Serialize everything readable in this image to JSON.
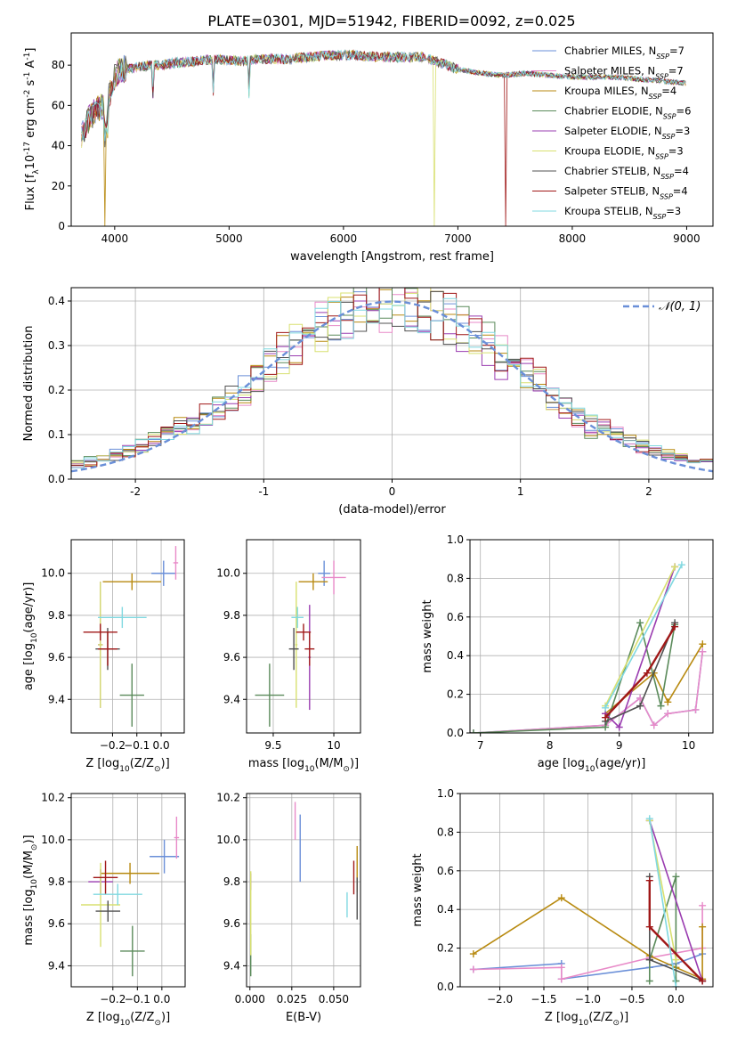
{
  "figure_title": "PLATE=0301, MJD=51942, FIBERID=0092, z=0.025",
  "models": [
    {
      "base": "Chabrier MILES, N",
      "sub": "SSP",
      "tail": "=7",
      "color": "#6a8fd8"
    },
    {
      "base": "Salpeter MILES, N",
      "sub": "SSP",
      "tail": "=7",
      "color": "#e88ac8"
    },
    {
      "base": "Kroupa MILES, N",
      "sub": "SSP",
      "tail": "=4",
      "color": "#b88a10"
    },
    {
      "base": "Chabrier ELODIE, N",
      "sub": "SSP",
      "tail": "=6",
      "color": "#5a8a5a"
    },
    {
      "base": "Salpeter ELODIE, N",
      "sub": "SSP",
      "tail": "=3",
      "color": "#9a3cb0"
    },
    {
      "base": "Kroupa ELODIE, N",
      "sub": "SSP",
      "tail": "=3",
      "color": "#d8e070"
    },
    {
      "base": "Chabrier STELIB, N",
      "sub": "SSP",
      "tail": "=4",
      "color": "#505050"
    },
    {
      "base": "Salpeter STELIB, N",
      "sub": "SSP",
      "tail": "=4",
      "color": "#a01818"
    },
    {
      "base": "Kroupa STELIB, N",
      "sub": "SSP",
      "tail": "=3",
      "color": "#80d8e0"
    }
  ],
  "chart_data": [
    {
      "id": "spectrum",
      "type": "line",
      "xlabel": "wavelength [Angstrom, rest frame]",
      "ylabel": {
        "pre": "Flux [f",
        "sub": "λ",
        "mid": "10",
        "sup1": "-17",
        "post": " erg cm",
        "sup2": "-2",
        "post2": " s",
        "sup3": "-1",
        "post3": " A",
        "sup4": "-1",
        "end": "]"
      },
      "xlim": [
        3620,
        9230
      ],
      "ylim": [
        0,
        96
      ],
      "xticks": [
        4000,
        5000,
        6000,
        7000,
        8000,
        9000
      ],
      "yticks": [
        0,
        20,
        40,
        60,
        80
      ],
      "grid": false,
      "legend": "upper-right",
      "continuum": {
        "x": [
          3710,
          3760,
          3800,
          3850,
          3900,
          3950,
          4000,
          4050,
          4100,
          4200,
          4300,
          4400,
          4500,
          4700,
          4900,
          5100,
          5300,
          5500,
          5700,
          5900,
          6100,
          6300,
          6500,
          6700,
          6800,
          7000,
          7200,
          7400,
          7600,
          7800,
          8000,
          8200,
          8400,
          8600,
          8800,
          9000
        ],
        "y": [
          45,
          52,
          55,
          58,
          60,
          65,
          74,
          78,
          78,
          79,
          80,
          80,
          81,
          82,
          83,
          82,
          83,
          83,
          84,
          85,
          85,
          84,
          84,
          84,
          82,
          78,
          76,
          75,
          76,
          75,
          74,
          74,
          74,
          73,
          72,
          71
        ]
      },
      "dropouts": [
        {
          "model": 2,
          "x": 3910
        },
        {
          "model": 5,
          "x": 6790
        },
        {
          "model": 7,
          "x": 7420
        }
      ]
    },
    {
      "id": "residuals",
      "type": "histogram",
      "xlabel": "(data-model)/error",
      "ylabel": "Normed distribution",
      "xlim": [
        -2.5,
        2.5
      ],
      "ylim": [
        0,
        0.43
      ],
      "xticks": [
        -2,
        -1,
        0,
        1,
        2
      ],
      "yticks": [
        0.0,
        0.1,
        0.2,
        0.3,
        0.4
      ],
      "grid": true,
      "legend": "upper-right",
      "reference_label": "𝒩(0, 1)",
      "reference_color": "#6a8fd8",
      "bin_width": 0.1
    },
    {
      "id": "z-age",
      "type": "scatter",
      "xlabel": {
        "pre": "Z [log",
        "sub": "10",
        "post": "(Z/Z",
        "sub2": "⊙",
        "end": ")]"
      },
      "ylabel": {
        "pre": "age  [log",
        "sub": "10",
        "post": "(age/yr)]"
      },
      "xlim": [
        -0.37,
        0.095
      ],
      "ylim": [
        9.24,
        10.16
      ],
      "xticks": [
        -0.2,
        -0.1,
        0.0
      ],
      "xticklabels": [
        "−0.2",
        "−0.1",
        "0.0"
      ],
      "yticks": [
        9.4,
        9.6,
        9.8,
        10.0
      ],
      "grid": true,
      "points": [
        {
          "model": 0,
          "x": 0.01,
          "xerr": [
            0.05,
            0.05
          ],
          "y": 10.0,
          "yerr": [
            0.06,
            0.06
          ]
        },
        {
          "model": 1,
          "x": 0.06,
          "xerr": [
            0.01,
            0.01
          ],
          "y": 10.05,
          "yerr": [
            0.08,
            0.08
          ]
        },
        {
          "model": 2,
          "x": -0.12,
          "xerr": [
            0.12,
            0.12
          ],
          "y": 9.96,
          "yerr": [
            0.04,
            0.04
          ]
        },
        {
          "model": 3,
          "x": -0.12,
          "xerr": [
            0.05,
            0.05
          ],
          "y": 9.42,
          "yerr": [
            0.15,
            0.15
          ]
        },
        {
          "model": 4,
          "x": -0.25,
          "xerr": [
            0.01,
            0.01
          ],
          "y": 9.66,
          "yerr": [
            0.3,
            0.3
          ]
        },
        {
          "model": 5,
          "x": -0.25,
          "xerr": [
            0.01,
            0.01
          ],
          "y": 9.66,
          "yerr": [
            0.3,
            0.3
          ]
        },
        {
          "model": 6,
          "x": -0.22,
          "xerr": [
            0.05,
            0.05
          ],
          "y": 9.64,
          "yerr": [
            0.1,
            0.1
          ]
        },
        {
          "model": 7,
          "x": -0.22,
          "xerr": [
            0.04,
            0.04
          ],
          "y": 9.64,
          "yerr": [
            0.08,
            0.08
          ]
        },
        {
          "model": 7,
          "x": -0.25,
          "xerr": [
            0.07,
            0.07
          ],
          "y": 9.72,
          "yerr": [
            0.04,
            0.04
          ]
        },
        {
          "model": 8,
          "x": -0.16,
          "xerr": [
            0.1,
            0.1
          ],
          "y": 9.79,
          "yerr": [
            0.05,
            0.05
          ]
        }
      ]
    },
    {
      "id": "mass-age",
      "type": "scatter",
      "xlabel": {
        "pre": "mass [log",
        "sub": "10",
        "post": "(M/M",
        "sub2": "⊙",
        "end": ")]"
      },
      "ylabel": "",
      "xlim": [
        9.28,
        10.22
      ],
      "ylim": [
        9.24,
        10.16
      ],
      "xticks": [
        9.5,
        10.0
      ],
      "yticks": [
        9.4,
        9.6,
        9.8,
        10.0
      ],
      "grid": true,
      "points": [
        {
          "model": 0,
          "x": 9.92,
          "xerr": [
            0.05,
            0.05
          ],
          "y": 10.0,
          "yerr": [
            0.06,
            0.06
          ]
        },
        {
          "model": 1,
          "x": 10.0,
          "xerr": [
            0.1,
            0.1
          ],
          "y": 9.98,
          "yerr": [
            0.08,
            0.08
          ]
        },
        {
          "model": 2,
          "x": 9.83,
          "xerr": [
            0.12,
            0.12
          ],
          "y": 9.96,
          "yerr": [
            0.04,
            0.04
          ]
        },
        {
          "model": 3,
          "x": 9.47,
          "xerr": [
            0.12,
            0.12
          ],
          "y": 9.42,
          "yerr": [
            0.15,
            0.15
          ]
        },
        {
          "model": 4,
          "x": 9.8,
          "xerr": [
            0.01,
            0.01
          ],
          "y": 9.6,
          "yerr": [
            0.25,
            0.25
          ]
        },
        {
          "model": 5,
          "x": 9.69,
          "xerr": [
            0.01,
            0.01
          ],
          "y": 9.66,
          "yerr": [
            0.3,
            0.3
          ]
        },
        {
          "model": 6,
          "x": 9.67,
          "xerr": [
            0.04,
            0.04
          ],
          "y": 9.64,
          "yerr": [
            0.1,
            0.1
          ]
        },
        {
          "model": 7,
          "x": 9.8,
          "xerr": [
            0.04,
            0.04
          ],
          "y": 9.64,
          "yerr": [
            0.08,
            0.08
          ]
        },
        {
          "model": 7,
          "x": 9.75,
          "xerr": [
            0.06,
            0.06
          ],
          "y": 9.72,
          "yerr": [
            0.04,
            0.04
          ]
        },
        {
          "model": 8,
          "x": 9.7,
          "xerr": [
            0.05,
            0.05
          ],
          "y": 9.79,
          "yerr": [
            0.05,
            0.05
          ]
        }
      ]
    },
    {
      "id": "age-weight",
      "type": "line",
      "xlabel": {
        "pre": "age  [log",
        "sub": "10",
        "post": "(age/yr)]"
      },
      "ylabel": "mass weight",
      "xlim": [
        6.85,
        10.35
      ],
      "ylim": [
        0,
        1.0
      ],
      "xticks": [
        7,
        8,
        9,
        10
      ],
      "yticks": [
        0.0,
        0.2,
        0.4,
        0.6,
        0.8,
        1.0
      ],
      "grid": true,
      "series": [
        {
          "model": 0,
          "x": [
            6.9,
            8.8,
            9.3,
            9.5,
            9.7,
            10.1,
            10.2
          ],
          "y": [
            0.0,
            0.04,
            0.18,
            0.04,
            0.1,
            0.12,
            0.42
          ]
        },
        {
          "model": 1,
          "x": [
            6.9,
            8.8,
            9.3,
            9.5,
            9.7,
            10.1,
            10.2
          ],
          "y": [
            0.0,
            0.04,
            0.18,
            0.04,
            0.1,
            0.12,
            0.42
          ]
        },
        {
          "model": 2,
          "x": [
            8.8,
            9.5,
            9.7,
            10.2
          ],
          "y": [
            0.1,
            0.31,
            0.16,
            0.46
          ]
        },
        {
          "model": 3,
          "x": [
            6.9,
            8.8,
            9.3,
            9.6,
            9.8
          ],
          "y": [
            0.0,
            0.03,
            0.57,
            0.14,
            0.56
          ]
        },
        {
          "model": 4,
          "x": [
            8.8,
            9.0,
            9.8
          ],
          "y": [
            0.1,
            0.03,
            0.86
          ]
        },
        {
          "model": 5,
          "x": [
            8.8,
            9.8
          ],
          "y": [
            0.14,
            0.86
          ]
        },
        {
          "model": 6,
          "x": [
            8.8,
            9.3,
            9.8
          ],
          "y": [
            0.06,
            0.14,
            0.57
          ]
        },
        {
          "model": 7,
          "x": [
            8.8,
            9.4,
            9.8
          ],
          "y": [
            0.08,
            0.31,
            0.55
          ]
        },
        {
          "model": 8,
          "x": [
            8.8,
            9.9
          ],
          "y": [
            0.13,
            0.87
          ]
        }
      ]
    },
    {
      "id": "z-mass",
      "type": "scatter",
      "xlabel": {
        "pre": "Z [log",
        "sub": "10",
        "post": "(Z/Z",
        "sub2": "⊙",
        "end": ")]"
      },
      "ylabel": {
        "pre": "mass [log",
        "sub": "10",
        "post": "(M/M",
        "sub2": "⊙",
        "end": ")]"
      },
      "xlim": [
        -0.37,
        0.095
      ],
      "ylim": [
        9.3,
        10.22
      ],
      "xticks": [
        -0.2,
        -0.1,
        0.0
      ],
      "xticklabels": [
        "−0.2",
        "−0.1",
        "0.0"
      ],
      "yticks": [
        9.4,
        9.6,
        9.8,
        10.0,
        10.2
      ],
      "grid": true,
      "points": [
        {
          "model": 0,
          "x": 0.01,
          "xerr": [
            0.06,
            0.06
          ],
          "y": 9.92,
          "yerr": [
            0.08,
            0.08
          ]
        },
        {
          "model": 1,
          "x": 0.06,
          "xerr": [
            0.01,
            0.01
          ],
          "y": 10.01,
          "yerr": [
            0.1,
            0.1
          ]
        },
        {
          "model": 2,
          "x": -0.13,
          "xerr": [
            0.12,
            0.12
          ],
          "y": 9.84,
          "yerr": [
            0.05,
            0.05
          ]
        },
        {
          "model": 3,
          "x": -0.12,
          "xerr": [
            0.05,
            0.05
          ],
          "y": 9.47,
          "yerr": [
            0.12,
            0.12
          ]
        },
        {
          "model": 4,
          "x": -0.25,
          "xerr": [
            0.05,
            0.05
          ],
          "y": 9.8,
          "yerr": [
            0.06,
            0.06
          ]
        },
        {
          "model": 5,
          "x": -0.25,
          "xerr": [
            0.08,
            0.08
          ],
          "y": 9.69,
          "yerr": [
            0.2,
            0.2
          ]
        },
        {
          "model": 6,
          "x": -0.22,
          "xerr": [
            0.05,
            0.05
          ],
          "y": 9.66,
          "yerr": [
            0.05,
            0.05
          ]
        },
        {
          "model": 7,
          "x": -0.23,
          "xerr": [
            0.05,
            0.05
          ],
          "y": 9.82,
          "yerr": [
            0.08,
            0.08
          ]
        },
        {
          "model": 8,
          "x": -0.18,
          "xerr": [
            0.1,
            0.1
          ],
          "y": 9.74,
          "yerr": [
            0.05,
            0.05
          ]
        }
      ]
    },
    {
      "id": "ebv-mass",
      "type": "scatter",
      "xlabel": "E(B-V)",
      "ylabel": "",
      "xlim": [
        -0.002,
        0.066
      ],
      "ylim": [
        9.3,
        10.22
      ],
      "xticks": [
        0.0,
        0.025,
        0.05
      ],
      "xticklabels": [
        "0.000",
        "0.025",
        "0.050"
      ],
      "yticks": [
        9.4,
        9.6,
        9.8,
        10.0,
        10.2
      ],
      "grid": true,
      "points": [
        {
          "model": 0,
          "x": 0.03,
          "xerr": [
            0,
            0
          ],
          "y": 9.96,
          "yerr": [
            0.16,
            0.16
          ]
        },
        {
          "model": 1,
          "x": 0.027,
          "xerr": [
            0,
            0
          ],
          "y": 10.09,
          "yerr": [
            0.09,
            0.09
          ]
        },
        {
          "model": 2,
          "x": 0.064,
          "xerr": [
            0,
            0
          ],
          "y": 9.86,
          "yerr": [
            0.11,
            0.11
          ]
        },
        {
          "model": 3,
          "x": 0.0005,
          "xerr": [
            0,
            0
          ],
          "y": 9.45,
          "yerr": [
            0.1,
            0.1
          ]
        },
        {
          "model": 4,
          "x": 0.0005,
          "xerr": [
            0,
            0
          ],
          "y": 9.8,
          "yerr": [
            0.04,
            0.04
          ]
        },
        {
          "model": 5,
          "x": 0.0005,
          "xerr": [
            0,
            0
          ],
          "y": 9.65,
          "yerr": [
            0.2,
            0.2
          ]
        },
        {
          "model": 6,
          "x": 0.064,
          "xerr": [
            0,
            0
          ],
          "y": 9.72,
          "yerr": [
            0.1,
            0.1
          ]
        },
        {
          "model": 7,
          "x": 0.062,
          "xerr": [
            0,
            0
          ],
          "y": 9.82,
          "yerr": [
            0.08,
            0.08
          ]
        },
        {
          "model": 8,
          "x": 0.058,
          "xerr": [
            0,
            0
          ],
          "y": 9.69,
          "yerr": [
            0.06,
            0.06
          ]
        }
      ]
    },
    {
      "id": "z-weight",
      "type": "line",
      "xlabel": {
        "pre": "Z [log",
        "sub": "10",
        "post": "(Z/Z",
        "sub2": "⊙",
        "end": ")]"
      },
      "ylabel": "mass weight",
      "xlim": [
        -2.45,
        0.42
      ],
      "ylim": [
        0,
        1.0
      ],
      "xticks": [
        -2.0,
        -1.5,
        -1.0,
        -0.5,
        0.0
      ],
      "xticklabels": [
        "−2.0",
        "−1.5",
        "−1.0",
        "−0.5",
        "0.0"
      ],
      "yticks": [
        0.0,
        0.2,
        0.4,
        0.6,
        0.8,
        1.0
      ],
      "grid": true,
      "series": [
        {
          "model": 0,
          "x": [
            -2.3,
            -1.3,
            -1.3,
            -0.3,
            0.0,
            0.3
          ],
          "y": [
            0.09,
            0.12,
            0.04,
            0.1,
            0.12,
            0.17
          ]
        },
        {
          "model": 1,
          "x": [
            -2.3,
            -1.3,
            -1.3,
            -0.3,
            0.3,
            0.3
          ],
          "y": [
            0.09,
            0.1,
            0.04,
            0.15,
            0.2,
            0.42
          ]
        },
        {
          "model": 2,
          "x": [
            -2.3,
            -1.3,
            -0.3,
            0.0,
            0.3,
            0.3
          ],
          "y": [
            0.17,
            0.46,
            0.16,
            0.1,
            0.04,
            0.31
          ]
        },
        {
          "model": 3,
          "x": [
            -0.3,
            -0.3,
            0.0,
            0.0
          ],
          "y": [
            0.03,
            0.14,
            0.57,
            0.03
          ]
        },
        {
          "model": 4,
          "x": [
            -0.3,
            0.3
          ],
          "y": [
            0.86,
            0.03
          ]
        },
        {
          "model": 5,
          "x": [
            -0.3,
            0.0
          ],
          "y": [
            0.86,
            0.14
          ]
        },
        {
          "model": 6,
          "x": [
            -0.3,
            -0.3,
            0.3
          ],
          "y": [
            0.57,
            0.14,
            0.03
          ]
        },
        {
          "model": 7,
          "x": [
            -0.3,
            -0.3,
            0.3
          ],
          "y": [
            0.55,
            0.31,
            0.03
          ]
        },
        {
          "model": 8,
          "x": [
            -0.3,
            0.0
          ],
          "y": [
            0.87,
            0.0
          ]
        }
      ]
    }
  ]
}
